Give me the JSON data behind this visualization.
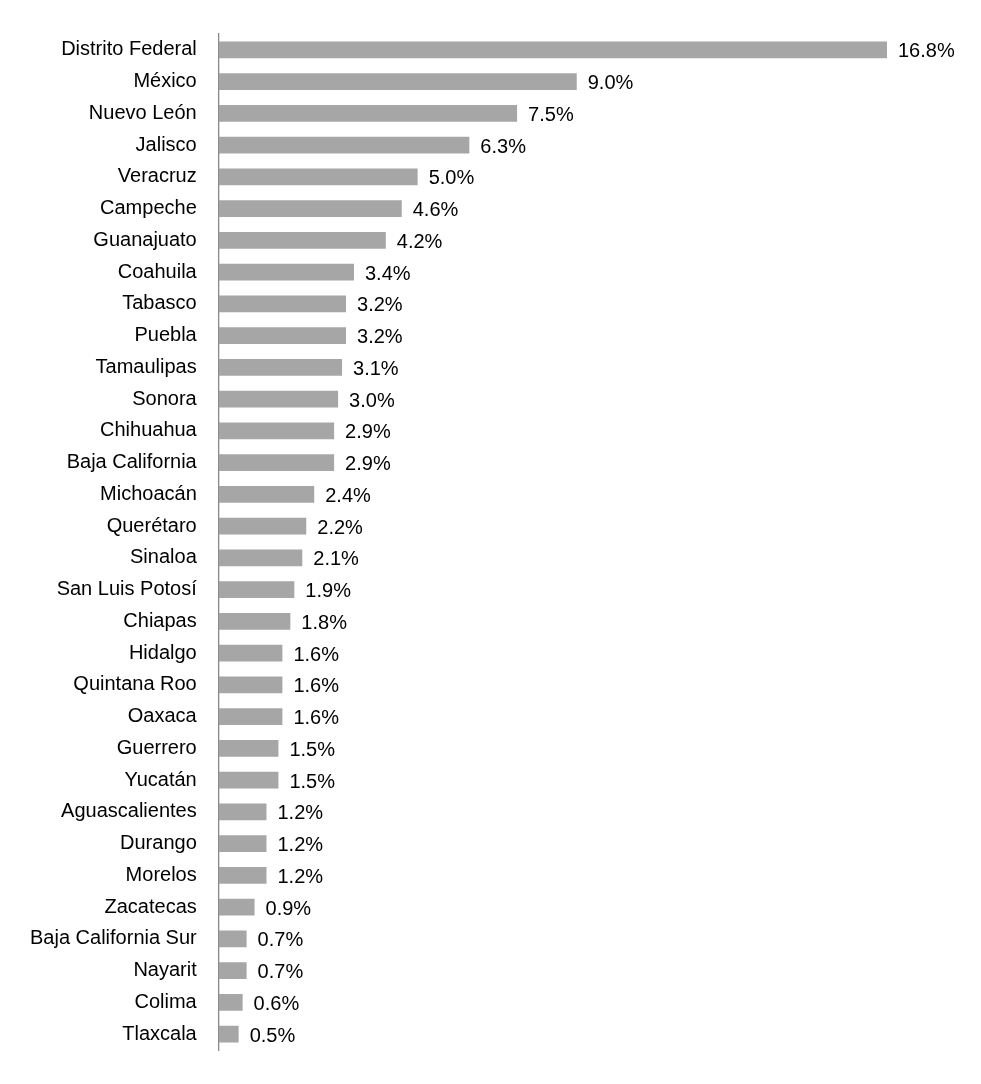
{
  "chart_data": {
    "type": "bar",
    "orientation": "horizontal",
    "color": "#a6a6a6",
    "categories": [
      "Distrito Federal",
      "México",
      "Nuevo León",
      "Jalisco",
      "Veracruz",
      "Campeche",
      "Guanajuato",
      "Coahuila",
      "Tabasco",
      "Puebla",
      "Tamaulipas",
      "Sonora",
      "Chihuahua",
      "Baja California",
      "Michoacán",
      "Querétaro",
      "Sinaloa",
      "San Luis Potosí",
      "Chiapas",
      "Hidalgo",
      "Quintana Roo",
      "Oaxaca",
      "Guerrero",
      "Yucatán",
      "Aguascalientes",
      "Durango",
      "Morelos",
      "Zacatecas",
      "Baja California Sur",
      "Nayarit",
      "Colima",
      "Tlaxcala"
    ],
    "values": [
      16.8,
      9.0,
      7.5,
      6.3,
      5.0,
      4.6,
      4.2,
      3.4,
      3.2,
      3.2,
      3.1,
      3.0,
      2.9,
      2.9,
      2.4,
      2.2,
      2.1,
      1.9,
      1.8,
      1.6,
      1.6,
      1.6,
      1.5,
      1.5,
      1.2,
      1.2,
      1.2,
      0.9,
      0.7,
      0.7,
      0.6,
      0.5
    ],
    "value_labels": [
      "16.8%",
      "9.0%",
      "7.5%",
      "6.3%",
      "5.0%",
      "4.6%",
      "4.2%",
      "3.4%",
      "3.2%",
      "3.2%",
      "3.1%",
      "3.0%",
      "2.9%",
      "2.9%",
      "2.4%",
      "2.2%",
      "2.1%",
      "1.9%",
      "1.8%",
      "1.6%",
      "1.6%",
      "1.6%",
      "1.5%",
      "1.5%",
      "1.2%",
      "1.2%",
      "1.2%",
      "0.9%",
      "0.7%",
      "0.7%",
      "0.6%",
      "0.5%"
    ]
  }
}
